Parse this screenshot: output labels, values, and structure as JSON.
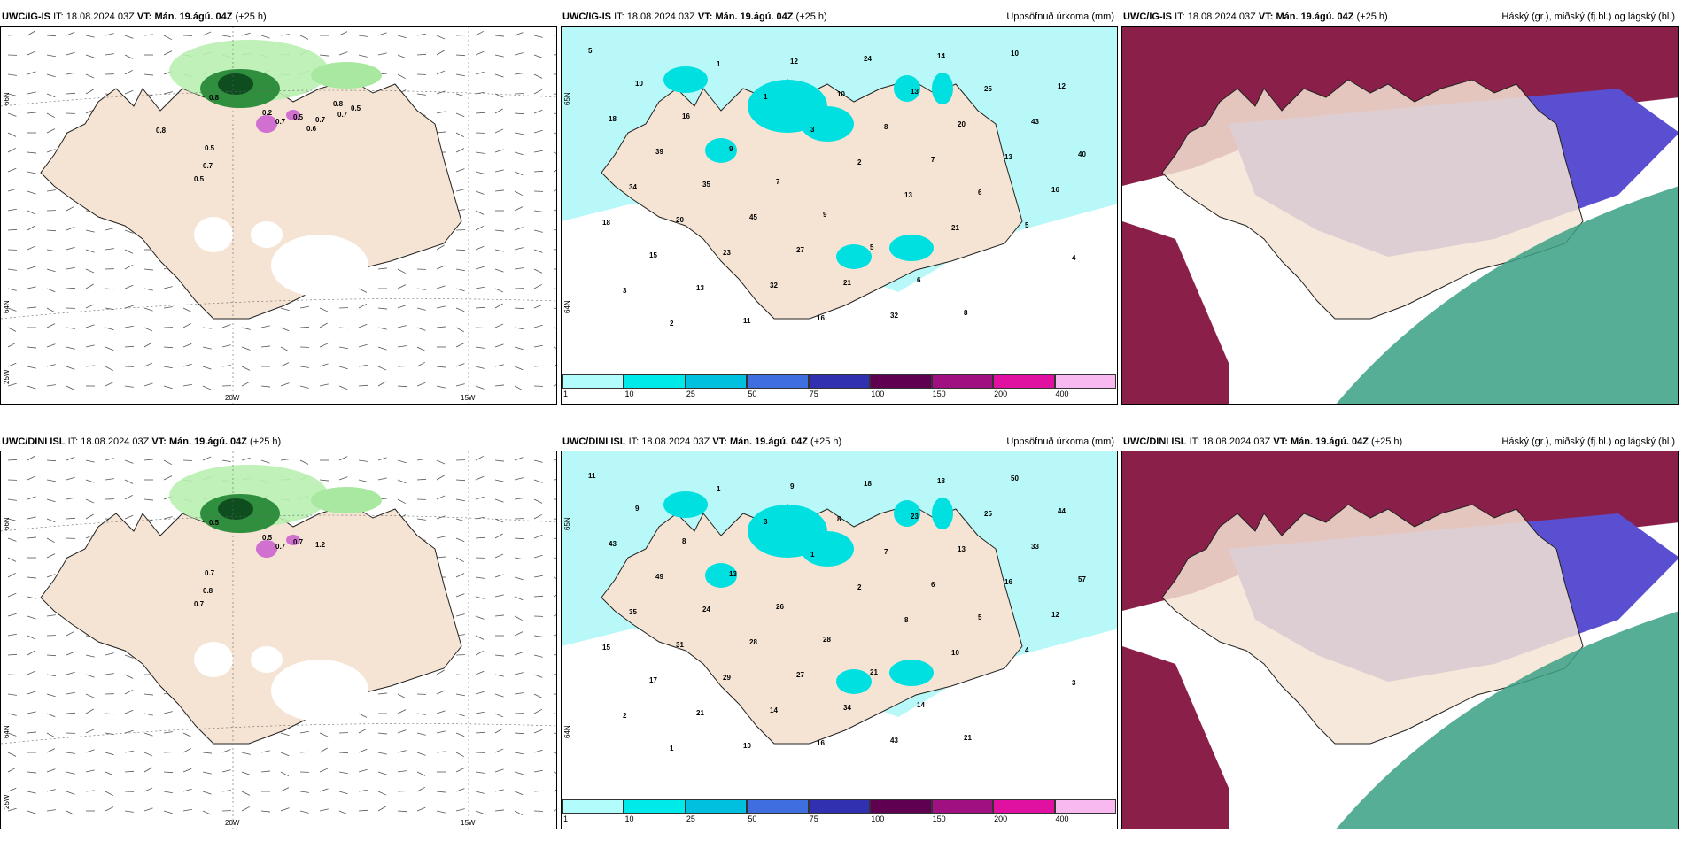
{
  "panels": [
    {
      "id": "p1",
      "model": "UWC/IG-IS",
      "it_label": "IT:",
      "it": "18.08.2024 03Z",
      "vt_label": "VT:",
      "vt": "Mán. 19.ágú. 04Z",
      "lead": "(+25 h)",
      "title": "",
      "type": "wind",
      "lat_labels": [
        "66N",
        "64N",
        "25W"
      ],
      "lon_labels": [
        "20W",
        "15W"
      ],
      "values": [
        "0.8",
        "0.5",
        "0.7",
        "0.5",
        "0.2",
        "0.7",
        "0.5",
        "0.7",
        "0.6",
        "0.8",
        "0.5",
        "0.7",
        "0.8"
      ]
    },
    {
      "id": "p2",
      "model": "UWC/IG-IS",
      "it_label": "IT:",
      "it": "18.08.2024 03Z",
      "vt_label": "VT:",
      "vt": "Mán. 19.ágú. 04Z",
      "lead": "(+25 h)",
      "title": "Uppsöfnuð úrkoma (mm)",
      "type": "precip",
      "lat_labels": [
        "65N",
        "64N"
      ],
      "lon_labels": [],
      "values": [
        "5",
        "10",
        "16",
        "9",
        "7",
        "9",
        "5",
        "6",
        "8",
        "10",
        "12",
        "18",
        "39",
        "35",
        "45",
        "27",
        "21",
        "32",
        "14",
        "25",
        "43",
        "40",
        "34",
        "20",
        "23",
        "32",
        "16",
        "24",
        "13",
        "20",
        "13",
        "16",
        "18",
        "15",
        "13",
        "11",
        "12",
        "10",
        "8",
        "7",
        "6",
        "5",
        "4",
        "3",
        "2",
        "1",
        "1",
        "3",
        "2",
        "13",
        "21"
      ]
    },
    {
      "id": "p3",
      "model": "UWC/IG-IS",
      "it_label": "IT:",
      "it": "18.08.2024 03Z",
      "vt_label": "VT:",
      "vt": "Mán. 19.ágú. 04Z",
      "lead": "(+25 h)",
      "title": "Háský (gr.), miðský (fj.bl.) og lágský (bl.)",
      "type": "cloud",
      "lat_labels": [],
      "lon_labels": [],
      "values": []
    },
    {
      "id": "p4",
      "model": "UWC/DINI ISL",
      "it_label": "IT:",
      "it": "18.08.2024 03Z",
      "vt_label": "VT:",
      "vt": "Mán. 19.ágú. 04Z",
      "lead": "(+25 h)",
      "title": "",
      "type": "wind",
      "lat_labels": [
        "66N",
        "64N",
        "25W"
      ],
      "lon_labels": [
        "20W",
        "15W"
      ],
      "values": [
        "0.5",
        "0.7",
        "0.8",
        "0.7",
        "0.5",
        "0.7",
        "0.7",
        "1.2"
      ]
    },
    {
      "id": "p5",
      "model": "UWC/DINI ISL",
      "it_label": "IT:",
      "it": "18.08.2024 03Z",
      "vt_label": "VT:",
      "vt": "Mán. 19.ágú. 04Z",
      "lead": "(+25 h)",
      "title": "Uppsöfnuð úrkoma (mm)",
      "type": "precip",
      "lat_labels": [
        "65N",
        "64N"
      ],
      "lon_labels": [],
      "values": [
        "11",
        "9",
        "8",
        "13",
        "26",
        "28",
        "21",
        "14",
        "21",
        "50",
        "44",
        "43",
        "49",
        "24",
        "28",
        "27",
        "34",
        "43",
        "18",
        "25",
        "33",
        "57",
        "35",
        "31",
        "29",
        "14",
        "16",
        "18",
        "23",
        "13",
        "16",
        "12",
        "15",
        "17",
        "21",
        "10",
        "9",
        "8",
        "7",
        "6",
        "5",
        "4",
        "3",
        "2",
        "1",
        "1",
        "3",
        "1",
        "2",
        "8",
        "10"
      ]
    },
    {
      "id": "p6",
      "model": "UWC/DINI ISL",
      "it_label": "IT:",
      "it": "18.08.2024 03Z",
      "vt_label": "VT:",
      "vt": "Mán. 19.ágú. 04Z",
      "lead": "(+25 h)",
      "title": "Háský (gr.), miðský (fj.bl.) og lágský (bl.)",
      "type": "cloud",
      "lat_labels": [],
      "lon_labels": [],
      "values": []
    }
  ],
  "colorbar": {
    "ticks": [
      "1",
      "10",
      "25",
      "50",
      "75",
      "100",
      "150",
      "200",
      "400"
    ],
    "colors": [
      "#b3fcfc",
      "#00eaea",
      "#00c0e0",
      "#3f6ee0",
      "#3030b0",
      "#600050",
      "#a01080",
      "#e010a0",
      "#f8b8f0"
    ]
  },
  "colors": {
    "land": "#f5e4d3",
    "precip_light": "#b8f8f8",
    "cloud_high": "#8a1f4a",
    "cloud_mid": "#5a4fd0",
    "cloud_low": "#3aa085"
  }
}
